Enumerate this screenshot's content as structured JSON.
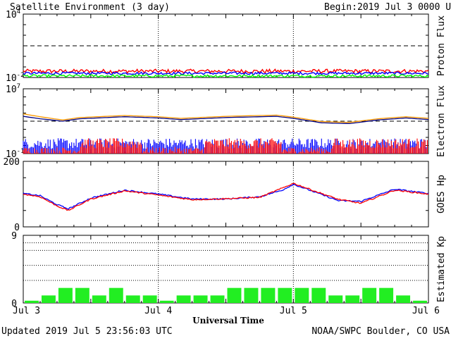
{
  "header": {
    "title": "Satellite Environment (3 day)",
    "begin_label": "Begin:",
    "begin_value": "2019 Jul 3 0000 UTC"
  },
  "footer": {
    "updated": "Updated 2019 Jul  5 23:56:03 UTC",
    "credit": "NOAA/SWPC Boulder, CO USA",
    "xlabel": "Universal Time"
  },
  "x_ticks": [
    "Jul 3",
    "Jul 4",
    "Jul 5",
    "Jul 6"
  ],
  "colors": {
    "red": "#ff0000",
    "blue": "#0000ff",
    "green": "#00ff00",
    "orange": "#ff9900",
    "navy": "#000080",
    "bar_green": "#22ee22"
  },
  "chart_data": [
    {
      "type": "line",
      "panel": "proton",
      "ylabel": "Proton Flux",
      "yscale": "log",
      "yticks": [
        {
          "label": "10",
          "sup": "4",
          "value": 4
        },
        {
          "label": "10",
          "sup": "-2",
          "value": -2
        }
      ],
      "ylim_log10": [
        -2,
        4
      ],
      "threshold_log10": 1,
      "x_range_hours": [
        0,
        72
      ],
      "series": [
        {
          "color": "red",
          "level_log10": -1.4,
          "noise": 0.18
        },
        {
          "color": "blue",
          "level_log10": -1.6,
          "noise": 0.12
        },
        {
          "color": "green",
          "level_log10": -1.85,
          "noise": 0.12
        }
      ]
    },
    {
      "type": "line",
      "panel": "electron",
      "ylabel": "Electron Flux",
      "yscale": "log",
      "yticks": [
        {
          "label": "10",
          "sup": "7",
          "value": 7
        },
        {
          "label": "10",
          "sup": "-1",
          "value": -1
        }
      ],
      "ylim_log10": [
        -1,
        7
      ],
      "threshold_log10": 3,
      "x_range_hours": [
        0,
        72
      ],
      "series": [
        {
          "color": "orange",
          "points_log10": [
            [
              0,
              3.9
            ],
            [
              3,
              3.55
            ],
            [
              7,
              3.15
            ],
            [
              10,
              3.45
            ],
            [
              18,
              3.7
            ],
            [
              24,
              3.55
            ],
            [
              28,
              3.35
            ],
            [
              36,
              3.6
            ],
            [
              45,
              3.75
            ],
            [
              48,
              3.5
            ],
            [
              53,
              2.95
            ],
            [
              58,
              2.85
            ],
            [
              63,
              3.3
            ],
            [
              68,
              3.55
            ],
            [
              72,
              3.35
            ]
          ]
        },
        {
          "color": "navy",
          "points_log10": [
            [
              0,
              3.6
            ],
            [
              3,
              3.3
            ],
            [
              7,
              3.0
            ],
            [
              10,
              3.3
            ],
            [
              18,
              3.55
            ],
            [
              24,
              3.4
            ],
            [
              28,
              3.2
            ],
            [
              36,
              3.45
            ],
            [
              45,
              3.6
            ],
            [
              48,
              3.35
            ],
            [
              53,
              2.8
            ],
            [
              58,
              2.7
            ],
            [
              63,
              3.15
            ],
            [
              68,
              3.4
            ],
            [
              72,
              3.2
            ]
          ]
        },
        {
          "color": "blue",
          "points_log10": [
            [
              0,
              0.1
            ],
            [
              72,
              0.1
            ]
          ]
        },
        {
          "color": "red",
          "points_log10": [
            [
              0,
              0.2
            ],
            [
              72,
              0.2
            ]
          ]
        }
      ]
    },
    {
      "type": "line",
      "panel": "goes_hp",
      "ylabel": "GOES Hp",
      "ylim": [
        0,
        200
      ],
      "yticks": [
        200,
        0
      ],
      "x_range_hours": [
        0,
        72
      ],
      "series": [
        {
          "color": "blue",
          "points": [
            [
              0,
              102
            ],
            [
              3,
              95
            ],
            [
              6,
              68
            ],
            [
              8,
              55
            ],
            [
              12,
              88
            ],
            [
              18,
              112
            ],
            [
              24,
              100
            ],
            [
              30,
              85
            ],
            [
              36,
              85
            ],
            [
              42,
              92
            ],
            [
              46,
              112
            ],
            [
              48,
              130
            ],
            [
              52,
              105
            ],
            [
              56,
              80
            ],
            [
              60,
              78
            ],
            [
              66,
              115
            ],
            [
              72,
              102
            ]
          ]
        },
        {
          "color": "red",
          "points": [
            [
              0,
              100
            ],
            [
              3,
              92
            ],
            [
              6,
              64
            ],
            [
              8,
              50
            ],
            [
              12,
              85
            ],
            [
              18,
              110
            ],
            [
              24,
              97
            ],
            [
              30,
              83
            ],
            [
              36,
              86
            ],
            [
              42,
              90
            ],
            [
              46,
              118
            ],
            [
              48,
              133
            ],
            [
              52,
              108
            ],
            [
              56,
              84
            ],
            [
              60,
              72
            ],
            [
              66,
              112
            ],
            [
              72,
              100
            ]
          ]
        }
      ]
    },
    {
      "type": "bar",
      "panel": "kp",
      "ylabel": "Estimated Kp",
      "ylim": [
        0,
        9
      ],
      "yticks": [
        9,
        0
      ],
      "gridlines": [
        3,
        5,
        7,
        8
      ],
      "bar_hours": 3,
      "values": [
        0.3,
        1,
        2,
        2,
        1,
        2,
        1,
        1,
        0.3,
        1,
        1,
        1,
        2,
        2,
        2,
        2,
        2,
        2,
        1,
        1,
        2,
        2,
        1,
        0.3
      ]
    }
  ]
}
